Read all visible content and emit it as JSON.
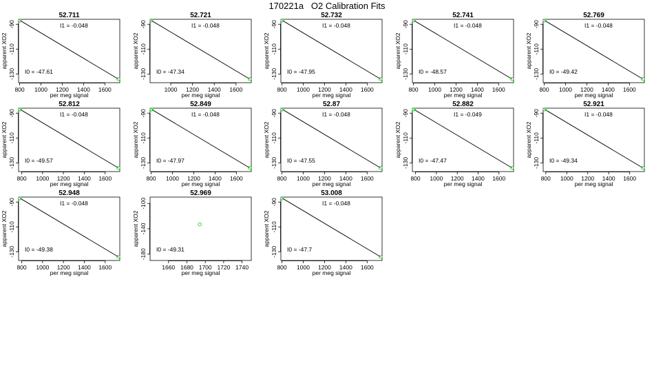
{
  "page_title": "170221a   O2 Calibration Fits",
  "chart_data": [
    {
      "type": "scatter",
      "title": "52.711",
      "xlabel": "per meg signal",
      "ylabel": "apparent XO2",
      "xlim": [
        790,
        1740
      ],
      "xticks": [
        800,
        1000,
        1200,
        1400,
        1600
      ],
      "ylim": [
        -137,
        -86
      ],
      "yticks": [
        -90,
        -110,
        -130
      ],
      "points": [
        {
          "x": 805,
          "y": -87
        },
        {
          "x": 1725,
          "y": -134
        }
      ],
      "fit_line": {
        "x1": 805,
        "y1": -87,
        "x2": 1725,
        "y2": -134
      },
      "annotations": {
        "i1": "I1 =  -0.048",
        "i0": "I0 =  -47.61"
      }
    },
    {
      "type": "scatter",
      "title": "52.721",
      "xlabel": "per meg signal",
      "ylabel": "apparent XO2",
      "xlim": [
        810,
        1740
      ],
      "xticks": [
        1000,
        1200,
        1400,
        1600
      ],
      "ylim": [
        -137,
        -86
      ],
      "yticks": [
        -90,
        -110,
        -130
      ],
      "points": [
        {
          "x": 822,
          "y": -87
        },
        {
          "x": 1725,
          "y": -134
        }
      ],
      "fit_line": {
        "x1": 822,
        "y1": -87,
        "x2": 1725,
        "y2": -134
      },
      "annotations": {
        "i1": "I1 =  -0.048",
        "i0": "I0 =  -47.34"
      }
    },
    {
      "type": "scatter",
      "title": "52.732",
      "xlabel": "per meg signal",
      "ylabel": "apparent XO2",
      "xlim": [
        790,
        1740
      ],
      "xticks": [
        800,
        1000,
        1200,
        1400,
        1600
      ],
      "ylim": [
        -137,
        -86
      ],
      "yticks": [
        -90,
        -110,
        -130
      ],
      "points": [
        {
          "x": 805,
          "y": -87
        },
        {
          "x": 1725,
          "y": -134
        }
      ],
      "fit_line": {
        "x1": 805,
        "y1": -87,
        "x2": 1725,
        "y2": -134
      },
      "annotations": {
        "i1": "I1 =  -0.048",
        "i0": "I0 =  -47.95"
      }
    },
    {
      "type": "scatter",
      "title": "52.741",
      "xlabel": "per meg signal",
      "ylabel": "apparent XO2",
      "xlim": [
        790,
        1740
      ],
      "xticks": [
        800,
        1000,
        1200,
        1400,
        1600
      ],
      "ylim": [
        -137,
        -86
      ],
      "yticks": [
        -90,
        -110,
        -130
      ],
      "points": [
        {
          "x": 805,
          "y": -87
        },
        {
          "x": 1725,
          "y": -134
        }
      ],
      "fit_line": {
        "x1": 805,
        "y1": -87,
        "x2": 1725,
        "y2": -134
      },
      "annotations": {
        "i1": "I1 =  -0.048",
        "i0": "I0 =  -48.57"
      }
    },
    {
      "type": "scatter",
      "title": "52.769",
      "xlabel": "per meg signal",
      "ylabel": "apparent XO2",
      "xlim": [
        790,
        1740
      ],
      "xticks": [
        800,
        1000,
        1200,
        1400,
        1600
      ],
      "ylim": [
        -137,
        -86
      ],
      "yticks": [
        -90,
        -110,
        -130
      ],
      "points": [
        {
          "x": 805,
          "y": -87
        },
        {
          "x": 1725,
          "y": -134
        }
      ],
      "fit_line": {
        "x1": 805,
        "y1": -87,
        "x2": 1725,
        "y2": -134
      },
      "annotations": {
        "i1": "I1 =  -0.048",
        "i0": "I0 =  -49.42"
      }
    },
    {
      "type": "scatter",
      "title": "52.812",
      "xlabel": "per meg signal",
      "ylabel": "apparent XO2",
      "xlim": [
        770,
        1740
      ],
      "xticks": [
        800,
        1000,
        1200,
        1400,
        1600
      ],
      "ylim": [
        -137,
        -86
      ],
      "yticks": [
        -90,
        -110,
        -130
      ],
      "points": [
        {
          "x": 785,
          "y": -87
        },
        {
          "x": 1725,
          "y": -134
        }
      ],
      "fit_line": {
        "x1": 785,
        "y1": -87,
        "x2": 1725,
        "y2": -134
      },
      "annotations": {
        "i1": "I1 =  -0.048",
        "i0": "I0 =  -49.57"
      }
    },
    {
      "type": "scatter",
      "title": "52.849",
      "xlabel": "per meg signal",
      "ylabel": "apparent XO2",
      "xlim": [
        790,
        1740
      ],
      "xticks": [
        800,
        1000,
        1200,
        1400,
        1600
      ],
      "ylim": [
        -137,
        -86
      ],
      "yticks": [
        -90,
        -110,
        -130
      ],
      "points": [
        {
          "x": 805,
          "y": -87
        },
        {
          "x": 1725,
          "y": -134
        }
      ],
      "fit_line": {
        "x1": 805,
        "y1": -87,
        "x2": 1725,
        "y2": -134
      },
      "annotations": {
        "i1": "I1 =  -0.048",
        "i0": "I0 =  -47.97"
      }
    },
    {
      "type": "scatter",
      "title": "52.87",
      "xlabel": "per meg signal",
      "ylabel": "apparent XO2",
      "xlim": [
        790,
        1740
      ],
      "xticks": [
        800,
        1000,
        1200,
        1400,
        1600
      ],
      "ylim": [
        -137,
        -86
      ],
      "yticks": [
        -90,
        -110,
        -130
      ],
      "points": [
        {
          "x": 805,
          "y": -87
        },
        {
          "x": 1725,
          "y": -134
        }
      ],
      "fit_line": {
        "x1": 805,
        "y1": -87,
        "x2": 1725,
        "y2": -134
      },
      "annotations": {
        "i1": "I1 =  -0.048",
        "i0": "I0 =  -47.55"
      }
    },
    {
      "type": "scatter",
      "title": "52.882",
      "xlabel": "per meg signal",
      "ylabel": "apparent XO2",
      "xlim": [
        770,
        1740
      ],
      "xticks": [
        800,
        1000,
        1200,
        1400,
        1600
      ],
      "ylim": [
        -137,
        -86
      ],
      "yticks": [
        -90,
        -110,
        -130
      ],
      "points": [
        {
          "x": 785,
          "y": -87
        },
        {
          "x": 1725,
          "y": -134
        }
      ],
      "fit_line": {
        "x1": 785,
        "y1": -87,
        "x2": 1725,
        "y2": -134
      },
      "annotations": {
        "i1": "I1 =  -0.049",
        "i0": "I0 =  -47.47"
      }
    },
    {
      "type": "scatter",
      "title": "52.921",
      "xlabel": "per meg signal",
      "ylabel": "apparent XO2",
      "xlim": [
        775,
        1740
      ],
      "xticks": [
        800,
        1000,
        1200,
        1400,
        1600
      ],
      "ylim": [
        -137,
        -86
      ],
      "yticks": [
        -90,
        -110,
        -130
      ],
      "points": [
        {
          "x": 790,
          "y": -87
        },
        {
          "x": 1725,
          "y": -134
        }
      ],
      "fit_line": {
        "x1": 790,
        "y1": -87,
        "x2": 1725,
        "y2": -134
      },
      "annotations": {
        "i1": "I1 =  -0.048",
        "i0": "I0 =  -49.34"
      }
    },
    {
      "type": "scatter",
      "title": "52.948",
      "xlabel": "per meg signal",
      "ylabel": "apparent XO2",
      "xlim": [
        770,
        1740
      ],
      "xticks": [
        800,
        1000,
        1200,
        1400,
        1600
      ],
      "ylim": [
        -137,
        -86
      ],
      "yticks": [
        -90,
        -110,
        -130
      ],
      "points": [
        {
          "x": 785,
          "y": -87
        },
        {
          "x": 1725,
          "y": -134
        }
      ],
      "fit_line": {
        "x1": 785,
        "y1": -87,
        "x2": 1725,
        "y2": -134
      },
      "annotations": {
        "i1": "I1 =  -0.048",
        "i0": "I0 =  -49.38"
      }
    },
    {
      "type": "scatter",
      "title": "52.969",
      "xlabel": "per meg signal",
      "ylabel": "apparent XO2",
      "xlim": [
        1640,
        1750
      ],
      "xticks": [
        1660,
        1680,
        1700,
        1720,
        1740
      ],
      "ylim": [
        -190,
        -90
      ],
      "yticks": [
        -100,
        -140,
        -180
      ],
      "points": [
        {
          "x": 1694,
          "y": -133
        }
      ],
      "fit_line": null,
      "annotations": {
        "i1": "",
        "i0": "I0 =  -49.31"
      }
    },
    {
      "type": "scatter",
      "title": "53.008",
      "xlabel": "per meg signal",
      "ylabel": "apparent XO2",
      "xlim": [
        790,
        1740
      ],
      "xticks": [
        800,
        1000,
        1200,
        1400,
        1600
      ],
      "ylim": [
        -137,
        -86
      ],
      "yticks": [
        -90,
        -110,
        -130
      ],
      "points": [
        {
          "x": 805,
          "y": -87
        },
        {
          "x": 1725,
          "y": -134
        }
      ],
      "fit_line": {
        "x1": 805,
        "y1": -87,
        "x2": 1725,
        "y2": -134
      },
      "annotations": {
        "i1": "I1 =  -0.048",
        "i0": "I0 =  -47.7"
      }
    }
  ],
  "colors": {
    "point": "#22dd22",
    "line": "#000000",
    "axis": "#000000"
  }
}
